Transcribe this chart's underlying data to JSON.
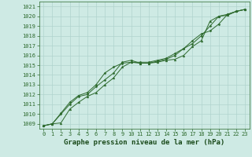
{
  "title": "Graphe pression niveau de la mer (hPa)",
  "x_values": [
    0,
    1,
    2,
    3,
    4,
    5,
    6,
    7,
    8,
    9,
    10,
    11,
    12,
    13,
    14,
    15,
    16,
    17,
    18,
    19,
    20,
    21,
    22,
    23
  ],
  "series1": [
    1008.8,
    1009.0,
    1009.1,
    1010.5,
    1011.2,
    1011.8,
    1012.2,
    1013.0,
    1013.7,
    1014.8,
    1015.3,
    1015.2,
    1015.2,
    1015.3,
    1015.5,
    1015.6,
    1016.0,
    1016.9,
    1017.5,
    1019.5,
    1020.0,
    1020.1,
    1020.5,
    1020.7
  ],
  "series2": [
    1008.8,
    1009.0,
    1010.1,
    1011.2,
    1011.9,
    1012.2,
    1013.0,
    1014.2,
    1014.8,
    1015.2,
    1015.3,
    1015.3,
    1015.3,
    1015.5,
    1015.7,
    1016.2,
    1016.7,
    1017.5,
    1018.2,
    1018.5,
    1019.2,
    1020.2,
    1020.5,
    1020.7
  ],
  "series3": [
    1008.8,
    1009.0,
    1010.0,
    1011.0,
    1011.8,
    1012.0,
    1012.8,
    1013.5,
    1014.2,
    1015.3,
    1015.5,
    1015.2,
    1015.2,
    1015.4,
    1015.6,
    1016.0,
    1016.7,
    1017.2,
    1018.0,
    1019.0,
    1020.0,
    1020.2,
    1020.5,
    1020.7
  ],
  "line_color": "#2d6a2d",
  "bg_color": "#ceeae4",
  "grid_color": "#b0d4ce",
  "title_color": "#1a4a1a",
  "ylim_min": 1008.5,
  "ylim_max": 1021.5,
  "yticks": [
    1009,
    1010,
    1011,
    1012,
    1013,
    1014,
    1015,
    1016,
    1017,
    1018,
    1019,
    1020,
    1021
  ],
  "title_fontsize": 6.5,
  "tick_fontsize": 5.0,
  "fig_width": 3.2,
  "fig_height": 2.0,
  "dpi": 100
}
